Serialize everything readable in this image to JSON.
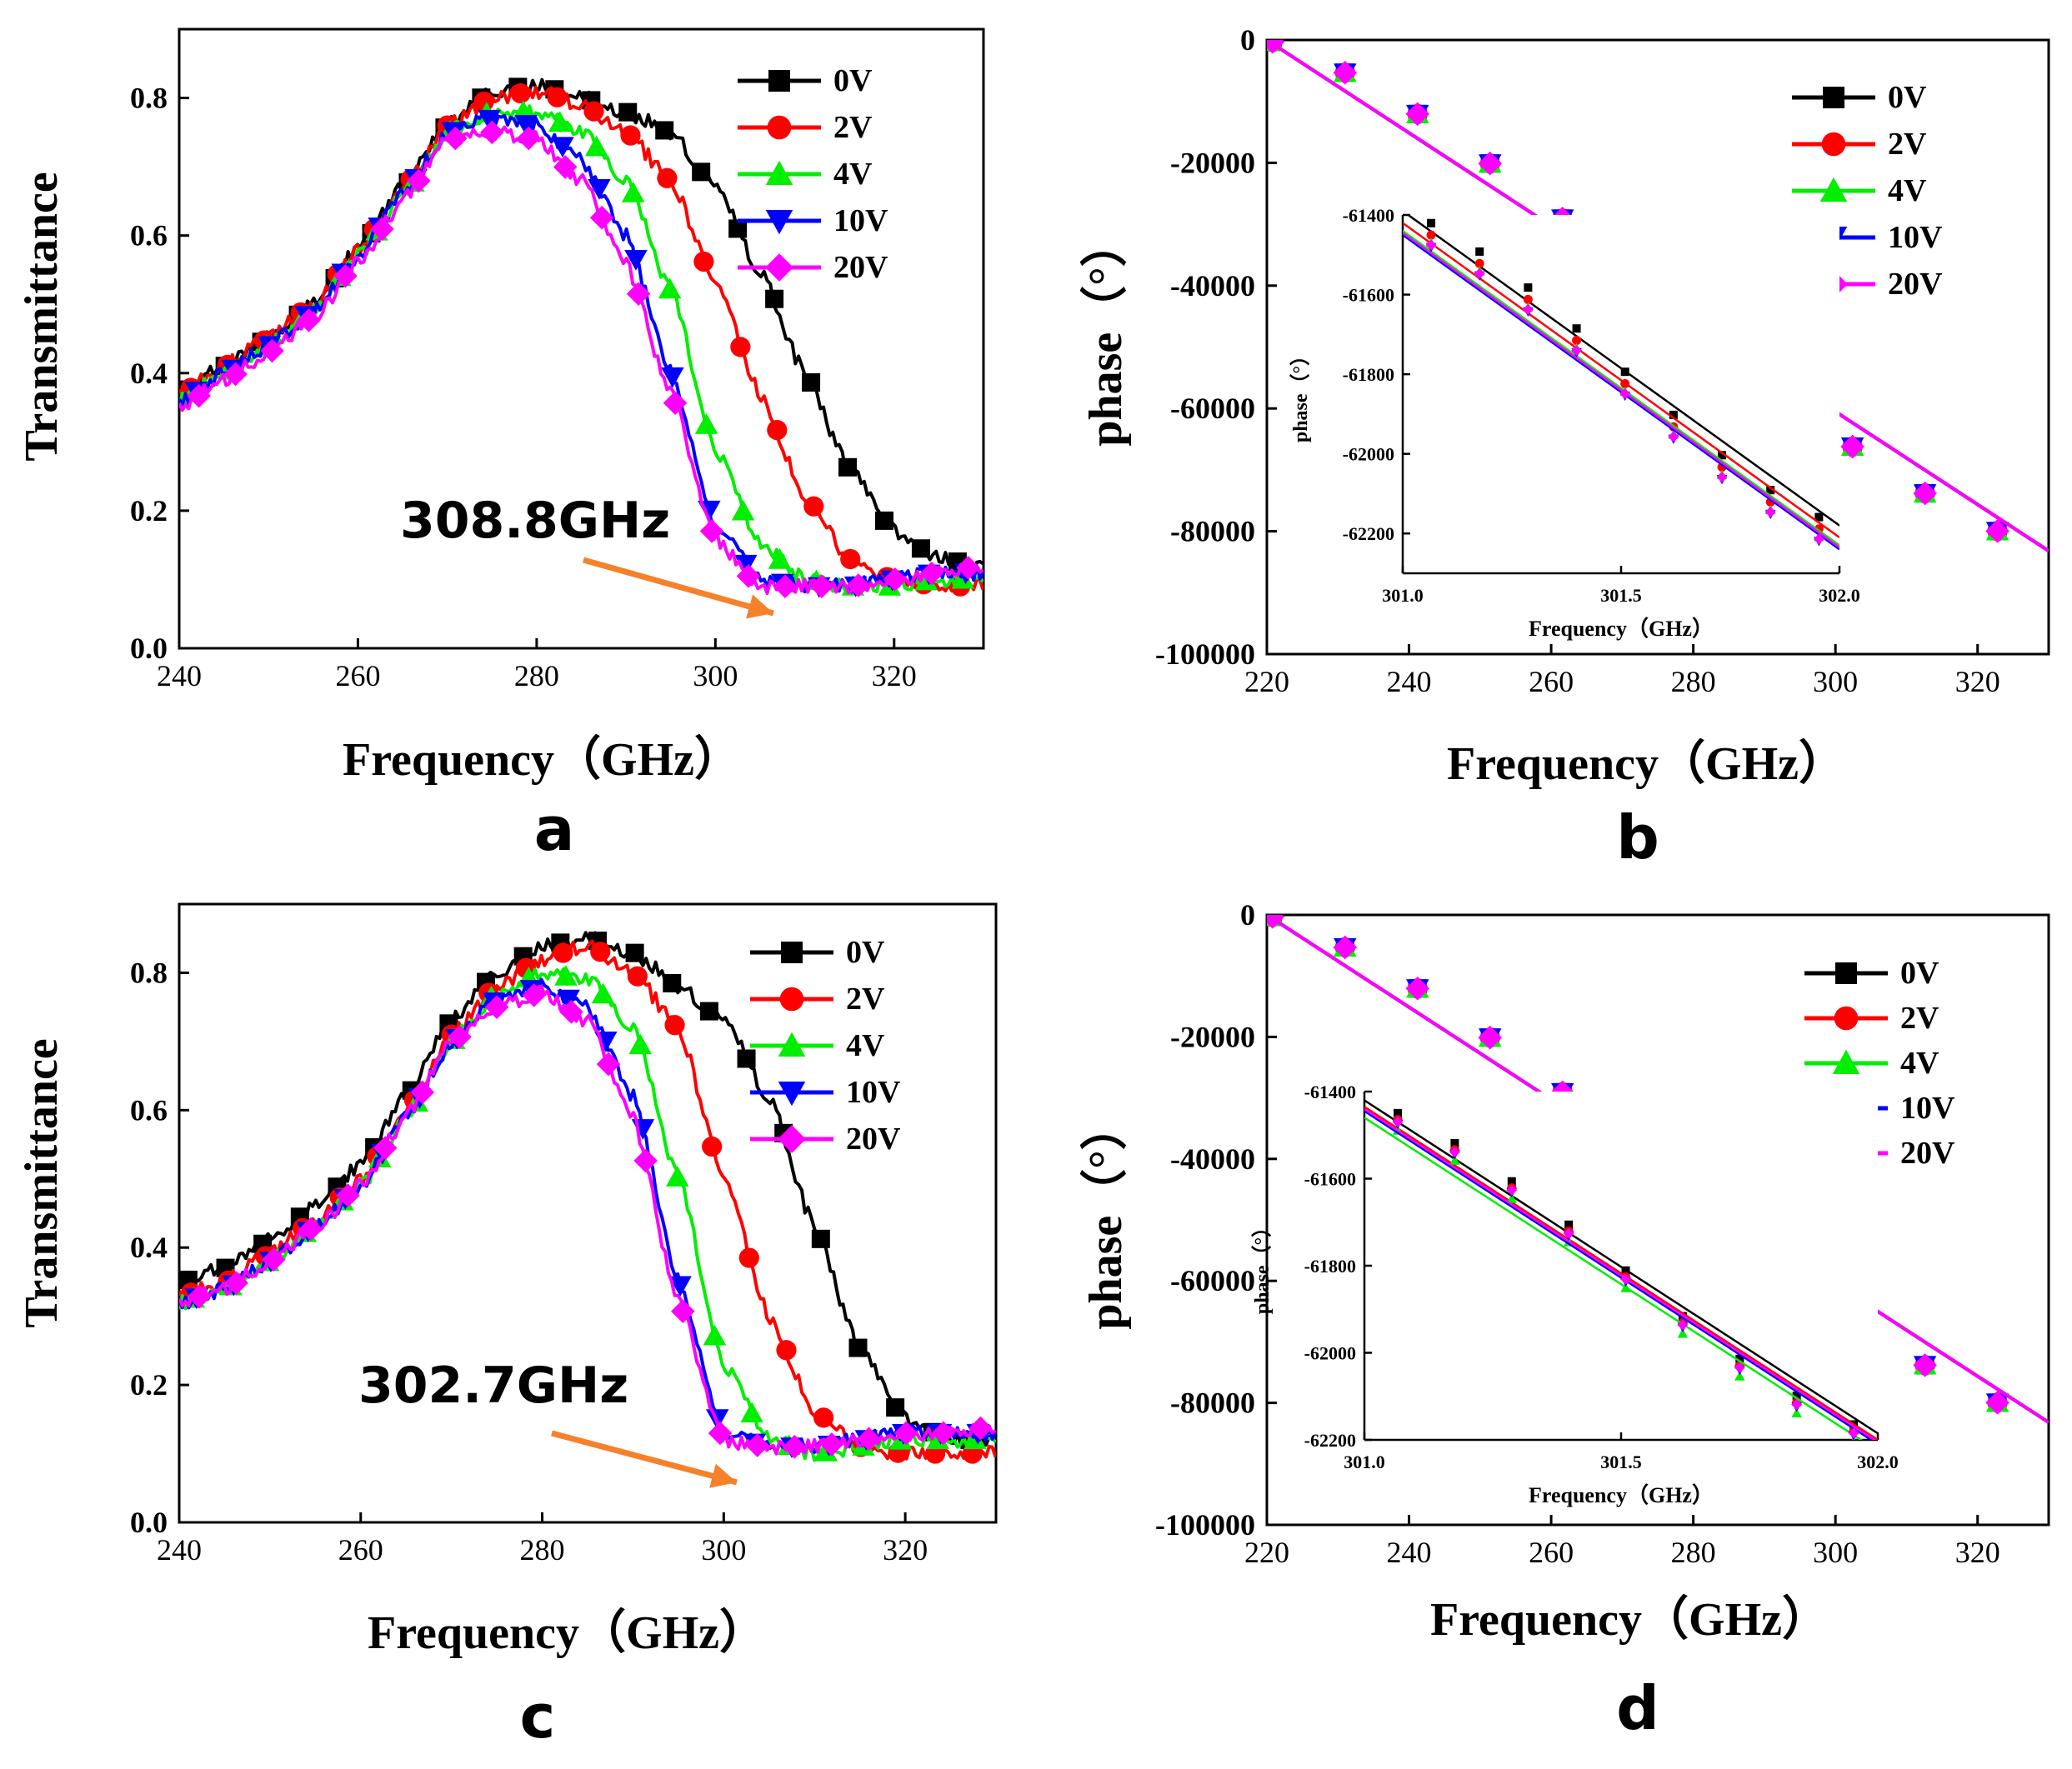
{
  "figure": {
    "panel_labels": [
      "a",
      "b",
      "c",
      "d"
    ],
    "colors": {
      "0V": "#000000",
      "2V": "#ff0000",
      "4V": "#00ee00",
      "10V": "#0000ff",
      "20V": "#ff00ff",
      "arrow": "#f5822a"
    }
  },
  "chart_data": [
    {
      "panel": "a",
      "type": "line",
      "title": "",
      "xlabel": "Frequency（GHz）",
      "ylabel": "Transmittance",
      "xlim": [
        240,
        330
      ],
      "ylim": [
        0,
        0.9
      ],
      "xticks": [
        "240",
        "260",
        "280",
        "300",
        "320"
      ],
      "yticks": [
        "0.0",
        "0.2",
        "0.4",
        "0.6",
        "0.8"
      ],
      "legend": [
        "0V",
        "2V",
        "4V",
        "10V",
        "20V"
      ],
      "annotation": "308.8GHz",
      "series": [
        {
          "name": "0V",
          "x": [
            240,
            245,
            250,
            255,
            260,
            265,
            270,
            275,
            280,
            285,
            290,
            295,
            300,
            305,
            310,
            315,
            320,
            325,
            330
          ],
          "y": [
            0.37,
            0.41,
            0.45,
            0.5,
            0.58,
            0.67,
            0.76,
            0.81,
            0.82,
            0.8,
            0.78,
            0.75,
            0.67,
            0.55,
            0.4,
            0.26,
            0.17,
            0.13,
            0.12
          ]
        },
        {
          "name": "2V",
          "x": [
            240,
            245,
            250,
            255,
            260,
            265,
            270,
            275,
            280,
            285,
            290,
            295,
            300,
            305,
            310,
            315,
            320,
            325,
            330
          ],
          "y": [
            0.37,
            0.41,
            0.45,
            0.5,
            0.58,
            0.67,
            0.76,
            0.8,
            0.81,
            0.79,
            0.75,
            0.68,
            0.53,
            0.37,
            0.22,
            0.13,
            0.1,
            0.09,
            0.09
          ]
        },
        {
          "name": "4V",
          "x": [
            240,
            245,
            250,
            255,
            260,
            265,
            270,
            275,
            280,
            285,
            290,
            295,
            300,
            305,
            310,
            315,
            320,
            325,
            330
          ],
          "y": [
            0.36,
            0.4,
            0.44,
            0.49,
            0.57,
            0.66,
            0.75,
            0.78,
            0.78,
            0.75,
            0.68,
            0.52,
            0.29,
            0.15,
            0.1,
            0.09,
            0.09,
            0.1,
            0.1
          ]
        },
        {
          "name": "10V",
          "x": [
            240,
            245,
            250,
            255,
            260,
            265,
            270,
            275,
            280,
            285,
            290,
            295,
            300,
            305,
            310,
            315,
            320,
            325,
            330
          ],
          "y": [
            0.36,
            0.4,
            0.44,
            0.49,
            0.57,
            0.66,
            0.75,
            0.77,
            0.76,
            0.71,
            0.6,
            0.4,
            0.18,
            0.1,
            0.09,
            0.09,
            0.1,
            0.11,
            0.11
          ]
        },
        {
          "name": "20V",
          "x": [
            240,
            245,
            250,
            255,
            260,
            265,
            270,
            275,
            280,
            285,
            290,
            295,
            300,
            305,
            310,
            315,
            320,
            325,
            330
          ],
          "y": [
            0.35,
            0.39,
            0.43,
            0.48,
            0.56,
            0.65,
            0.74,
            0.75,
            0.74,
            0.68,
            0.56,
            0.37,
            0.16,
            0.09,
            0.09,
            0.09,
            0.1,
            0.11,
            0.12
          ]
        }
      ]
    },
    {
      "panel": "b",
      "type": "line",
      "title": "",
      "xlabel": "Frequency（GHz）",
      "ylabel": "phase（°）",
      "xlim": [
        220,
        330
      ],
      "ylim": [
        -100000,
        0
      ],
      "xticks": [
        "220",
        "240",
        "260",
        "280",
        "300",
        "320"
      ],
      "yticks": [
        "0",
        "-20000",
        "-40000",
        "-60000",
        "-80000",
        "-100000"
      ],
      "legend": [
        "0V",
        "2V",
        "4V",
        "10V",
        "20V"
      ],
      "series": [
        {
          "name": "0V",
          "x": [
            220,
            330
          ],
          "y": [
            0,
            -83200
          ]
        },
        {
          "name": "2V",
          "x": [
            220,
            330
          ],
          "y": [
            0,
            -83200
          ]
        },
        {
          "name": "4V",
          "x": [
            220,
            330
          ],
          "y": [
            0,
            -83200
          ]
        },
        {
          "name": "10V",
          "x": [
            220,
            330
          ],
          "y": [
            0,
            -83200
          ]
        },
        {
          "name": "20V",
          "x": [
            220,
            330
          ],
          "y": [
            0,
            -83200
          ]
        }
      ],
      "inset": {
        "xlabel": "Frequency（GHz）",
        "ylabel": "phase（°）",
        "xlim": [
          301.0,
          302.0
        ],
        "ylim": [
          -62300,
          -61400
        ],
        "xticks": [
          "301.0",
          "301.5",
          "302.0"
        ],
        "yticks": [
          "-61400",
          "-61600",
          "-61800",
          "-62000",
          "-62200"
        ],
        "series": [
          {
            "name": "0V",
            "x": [
              301.0,
              302.0
            ],
            "y": [
              -61390,
              -62180
            ]
          },
          {
            "name": "2V",
            "x": [
              301.0,
              302.0
            ],
            "y": [
              -61420,
              -62210
            ]
          },
          {
            "name": "4V",
            "x": [
              301.0,
              302.0
            ],
            "y": [
              -61440,
              -62230
            ]
          },
          {
            "name": "10V",
            "x": [
              301.0,
              302.0
            ],
            "y": [
              -61450,
              -62240
            ]
          },
          {
            "name": "20V",
            "x": [
              301.0,
              302.0
            ],
            "y": [
              -61445,
              -62235
            ]
          }
        ]
      }
    },
    {
      "panel": "c",
      "type": "line",
      "title": "",
      "xlabel": "Frequency（GHz）",
      "ylabel": "Transmittance",
      "xlim": [
        240,
        330
      ],
      "ylim": [
        0,
        0.9
      ],
      "xticks": [
        "240",
        "260",
        "280",
        "300",
        "320"
      ],
      "yticks": [
        "0.0",
        "0.2",
        "0.4",
        "0.6",
        "0.8"
      ],
      "legend": [
        "0V",
        "2V",
        "4V",
        "10V",
        "20V"
      ],
      "annotation": "302.7GHz",
      "series": [
        {
          "name": "0V",
          "x": [
            240,
            245,
            250,
            255,
            260,
            265,
            270,
            275,
            280,
            285,
            290,
            295,
            300,
            305,
            310,
            315,
            320,
            325,
            330
          ],
          "y": [
            0.35,
            0.37,
            0.41,
            0.46,
            0.52,
            0.62,
            0.73,
            0.8,
            0.84,
            0.85,
            0.83,
            0.78,
            0.73,
            0.62,
            0.43,
            0.25,
            0.15,
            0.12,
            0.12
          ]
        },
        {
          "name": "2V",
          "x": [
            240,
            245,
            250,
            255,
            260,
            265,
            270,
            275,
            280,
            285,
            290,
            295,
            300,
            305,
            310,
            315,
            320,
            325,
            330
          ],
          "y": [
            0.33,
            0.35,
            0.39,
            0.44,
            0.5,
            0.6,
            0.71,
            0.78,
            0.82,
            0.84,
            0.8,
            0.72,
            0.5,
            0.3,
            0.16,
            0.11,
            0.1,
            0.1,
            0.1
          ]
        },
        {
          "name": "4V",
          "x": [
            240,
            245,
            250,
            255,
            260,
            265,
            270,
            275,
            280,
            285,
            290,
            295,
            300,
            305,
            310,
            315,
            320,
            325,
            330
          ],
          "y": [
            0.32,
            0.34,
            0.38,
            0.43,
            0.49,
            0.59,
            0.7,
            0.77,
            0.8,
            0.79,
            0.72,
            0.5,
            0.23,
            0.12,
            0.1,
            0.11,
            0.12,
            0.12,
            0.12
          ]
        },
        {
          "name": "10V",
          "x": [
            240,
            245,
            250,
            255,
            260,
            265,
            270,
            275,
            280,
            285,
            290,
            295,
            300,
            305,
            310,
            315,
            320,
            325,
            330
          ],
          "y": [
            0.32,
            0.34,
            0.38,
            0.43,
            0.49,
            0.59,
            0.7,
            0.76,
            0.78,
            0.75,
            0.62,
            0.35,
            0.13,
            0.11,
            0.11,
            0.12,
            0.13,
            0.13,
            0.13
          ]
        },
        {
          "name": "20V",
          "x": [
            240,
            245,
            250,
            255,
            260,
            265,
            270,
            275,
            280,
            285,
            290,
            295,
            300,
            305,
            310,
            315,
            320,
            325,
            330
          ],
          "y": [
            0.32,
            0.34,
            0.38,
            0.43,
            0.49,
            0.59,
            0.7,
            0.75,
            0.77,
            0.73,
            0.59,
            0.32,
            0.12,
            0.11,
            0.11,
            0.12,
            0.13,
            0.13,
            0.14
          ]
        }
      ]
    },
    {
      "panel": "d",
      "type": "line",
      "title": "",
      "xlabel": "Frequency（GHz）",
      "ylabel": "phase（°）",
      "xlim": [
        220,
        330
      ],
      "ylim": [
        -100000,
        0
      ],
      "xticks": [
        "220",
        "240",
        "260",
        "280",
        "300",
        "320"
      ],
      "yticks": [
        "0",
        "-20000",
        "-40000",
        "-60000",
        "-80000",
        "-100000"
      ],
      "legend": [
        "0V",
        "2V",
        "4V",
        "10V",
        "20V"
      ],
      "series": [
        {
          "name": "0V",
          "x": [
            220,
            330
          ],
          "y": [
            0,
            -83200
          ]
        },
        {
          "name": "2V",
          "x": [
            220,
            330
          ],
          "y": [
            0,
            -83200
          ]
        },
        {
          "name": "4V",
          "x": [
            220,
            330
          ],
          "y": [
            0,
            -83200
          ]
        },
        {
          "name": "10V",
          "x": [
            220,
            330
          ],
          "y": [
            0,
            -83200
          ]
        },
        {
          "name": "20V",
          "x": [
            220,
            330
          ],
          "y": [
            0,
            -83200
          ]
        }
      ],
      "inset": {
        "xlabel": "Frequency（GHz）",
        "ylabel": "phase（°）",
        "xlim": [
          301.0,
          302.0
        ],
        "ylim": [
          -62200,
          -61400
        ],
        "xticks": [
          "301.0",
          "301.5",
          "302.0"
        ],
        "yticks": [
          "-61400",
          "-61600",
          "-61800",
          "-62000",
          "-62200"
        ],
        "series": [
          {
            "name": "0V",
            "x": [
              301.0,
              302.0
            ],
            "y": [
              -61420,
              -62185
            ]
          },
          {
            "name": "2V",
            "x": [
              301.0,
              302.0
            ],
            "y": [
              -61435,
              -62200
            ]
          },
          {
            "name": "4V",
            "x": [
              301.0,
              302.0
            ],
            "y": [
              -61460,
              -62225
            ]
          },
          {
            "name": "10V",
            "x": [
              301.0,
              302.0
            ],
            "y": [
              -61445,
              -62210
            ]
          },
          {
            "name": "20V",
            "x": [
              301.0,
              302.0
            ],
            "y": [
              -61440,
              -62205
            ]
          }
        ]
      }
    }
  ]
}
